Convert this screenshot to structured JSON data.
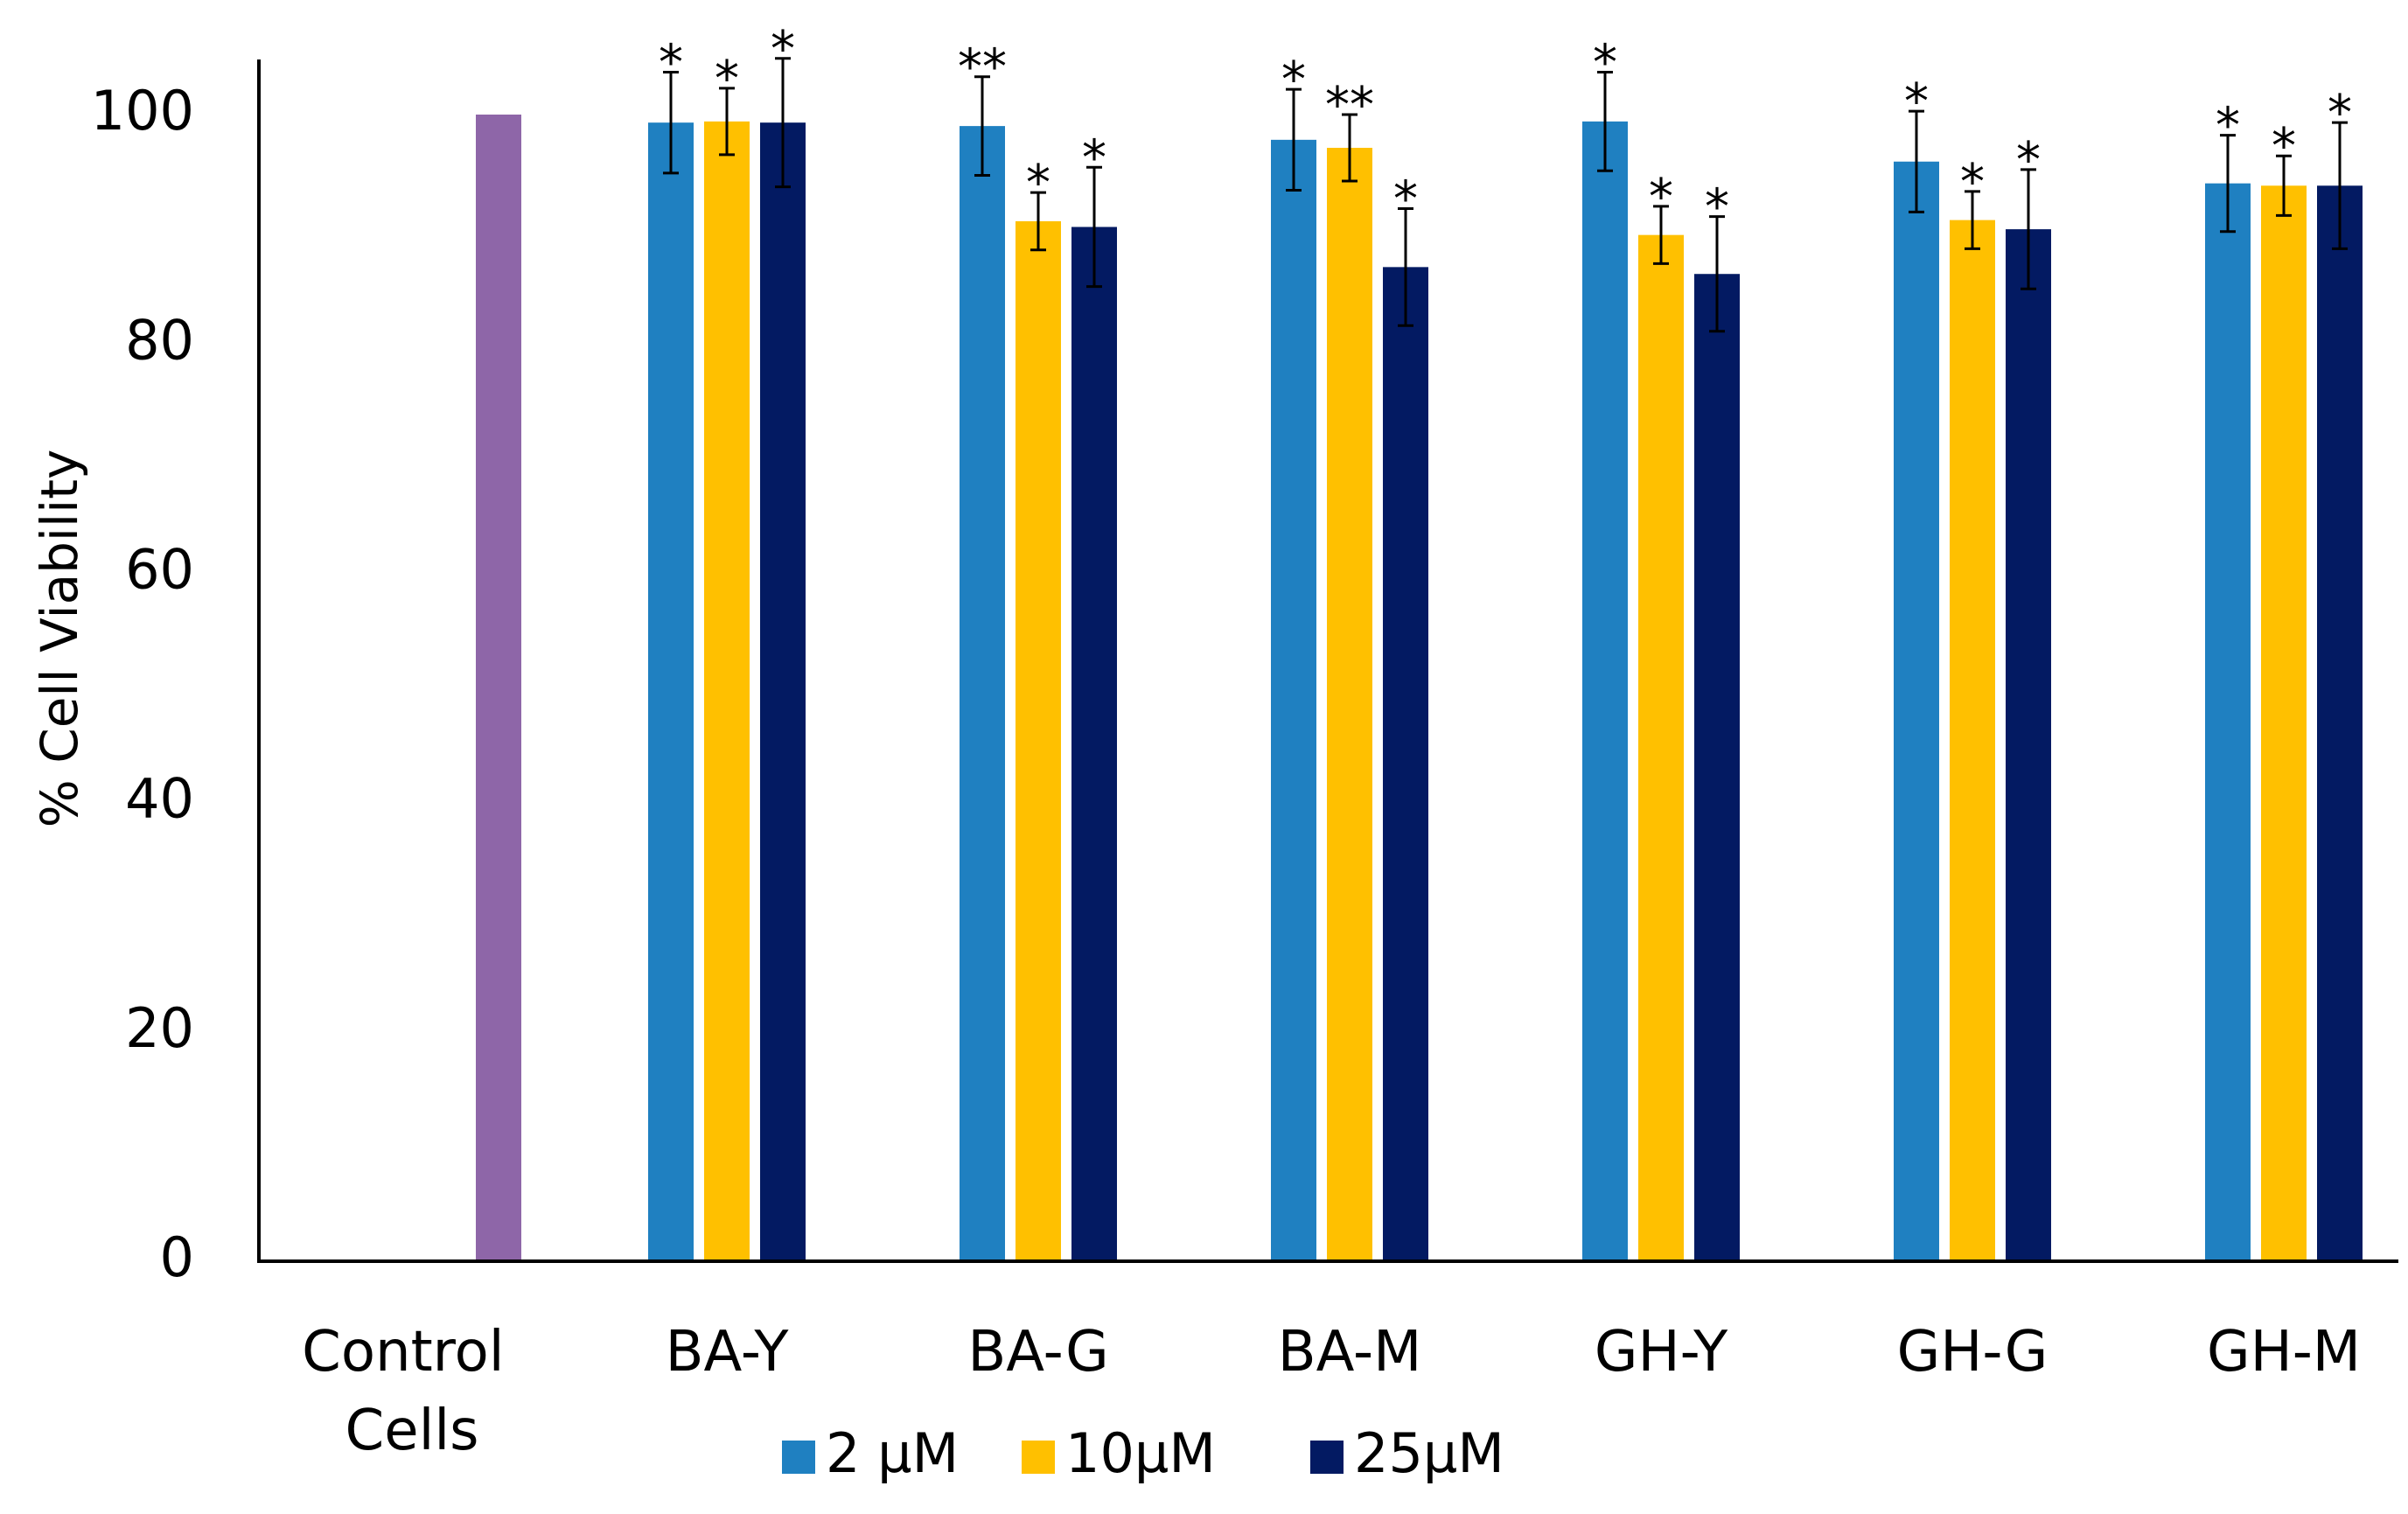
{
  "chart_data": {
    "type": "bar",
    "title": "",
    "xlabel": "",
    "ylabel": "% Cell Viability",
    "ylim": [
      0,
      105
    ],
    "yticks": [
      0,
      20,
      40,
      60,
      80,
      100
    ],
    "grid": false,
    "legend_position": "bottom",
    "control": {
      "label_lines": [
        "Control",
        "Cells"
      ],
      "value": 100,
      "color": "#8E66A8"
    },
    "categories": [
      "BA-Y",
      "BA-G",
      "BA-M",
      "GH-Y",
      "GH-G",
      "GH-M"
    ],
    "series": [
      {
        "name": "2 µM",
        "color": "#1F80C1",
        "values": [
          99.3,
          99.0,
          97.8,
          99.4,
          95.9,
          94.0
        ],
        "errors": [
          4.4,
          4.3,
          4.4,
          4.3,
          4.4,
          4.2
        ],
        "significance": [
          "*",
          "**",
          "*",
          "*",
          "*",
          "*"
        ]
      },
      {
        "name": "10µM",
        "color": "#FFC000",
        "values": [
          99.4,
          90.7,
          97.1,
          89.5,
          90.8,
          93.8
        ],
        "errors": [
          2.9,
          2.5,
          2.9,
          2.5,
          2.5,
          2.6
        ],
        "significance": [
          "*",
          "*",
          "**",
          "*",
          "*",
          "*"
        ]
      },
      {
        "name": "25µM",
        "color": "#031A62",
        "values": [
          99.3,
          90.2,
          86.7,
          86.1,
          90.0,
          93.8
        ],
        "errors": [
          5.6,
          5.2,
          5.1,
          5.0,
          5.2,
          5.5
        ],
        "significance": [
          "*",
          "*",
          "*",
          "*",
          "*",
          "*"
        ]
      }
    ]
  }
}
